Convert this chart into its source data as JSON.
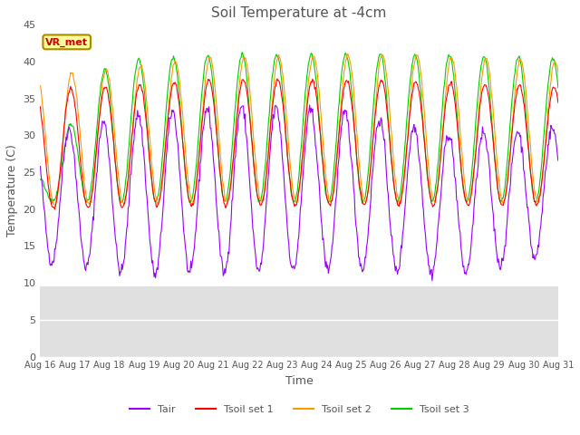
{
  "title": "Soil Temperature at -4cm",
  "xlabel": "Time",
  "ylabel": "Temperature (C)",
  "ylim": [
    0,
    45
  ],
  "yticks": [
    0,
    5,
    10,
    15,
    20,
    25,
    30,
    35,
    40,
    45
  ],
  "x_tick_labels": [
    "Aug 16",
    "Aug 17",
    "Aug 18",
    "Aug 19",
    "Aug 20",
    "Aug 21",
    "Aug 22",
    "Aug 23",
    "Aug 24",
    "Aug 25",
    "Aug 26",
    "Aug 27",
    "Aug 28",
    "Aug 29",
    "Aug 30",
    "Aug 31"
  ],
  "legend_labels": [
    "Tair",
    "Tsoil set 1",
    "Tsoil set 2",
    "Tsoil set 3"
  ],
  "line_colors": [
    "#9900ff",
    "#ff0000",
    "#ff9900",
    "#00cc00"
  ],
  "annotation_text": "VR_met",
  "annotation_color": "#cc0000",
  "annotation_bg": "#ffff99",
  "bg_gray": "#e0e0e0",
  "bg_white": "#ffffff",
  "gray_threshold": 9.5,
  "title_color": "#555555",
  "label_color": "#555555",
  "tick_color": "#555555",
  "n_days": 15,
  "samples_per_day": 48,
  "figwidth": 6.4,
  "figheight": 4.8,
  "dpi": 100
}
